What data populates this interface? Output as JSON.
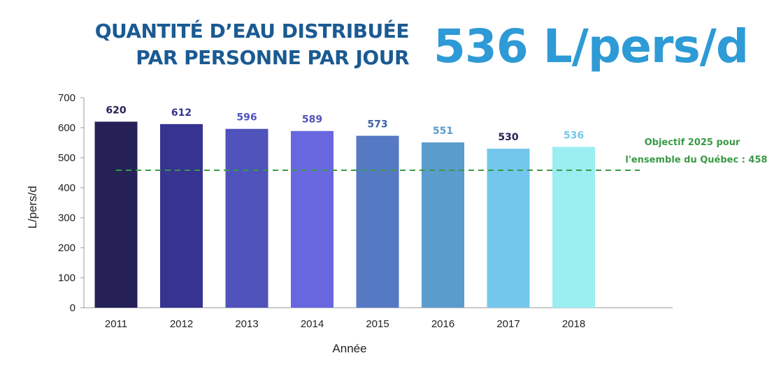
{
  "header": {
    "title_line1": "QUANTITÉ D’EAU DISTRIBUÉE",
    "title_line2": "PAR PERSONNE PAR JOUR",
    "headline_value": "536 L/pers/d"
  },
  "chart_data": {
    "type": "bar",
    "categories": [
      "2011",
      "2012",
      "2013",
      "2014",
      "2015",
      "2016",
      "2017",
      "2018"
    ],
    "values": [
      620,
      612,
      596,
      589,
      573,
      551,
      530,
      536
    ],
    "value_labels": [
      "620",
      "612",
      "596",
      "589",
      "573",
      "551",
      "530",
      "536"
    ],
    "bar_colors": [
      "#252157",
      "#373391",
      "#4f53bb",
      "#6867e0",
      "#5679c4",
      "#5a9ccc",
      "#74c7ec",
      "#9aeef0"
    ],
    "label_colors": [
      "#252157",
      "#373391",
      "#4f53bb",
      "#4f53bb",
      "#3f63a8",
      "#5a9ccc",
      "#252157",
      "#74c7ec"
    ],
    "title": "",
    "xlabel": "Année",
    "ylabel": "L/pers/d",
    "ylim": [
      0,
      700
    ],
    "yticks": [
      "0",
      "100",
      "200",
      "300",
      "400",
      "500",
      "600",
      "700"
    ],
    "grid": false,
    "reference_line": {
      "value": 458,
      "color": "#3a9a45",
      "label_line1": "Objectif 2025 pour",
      "label_line2": "l'ensemble du Québec : 458"
    }
  }
}
